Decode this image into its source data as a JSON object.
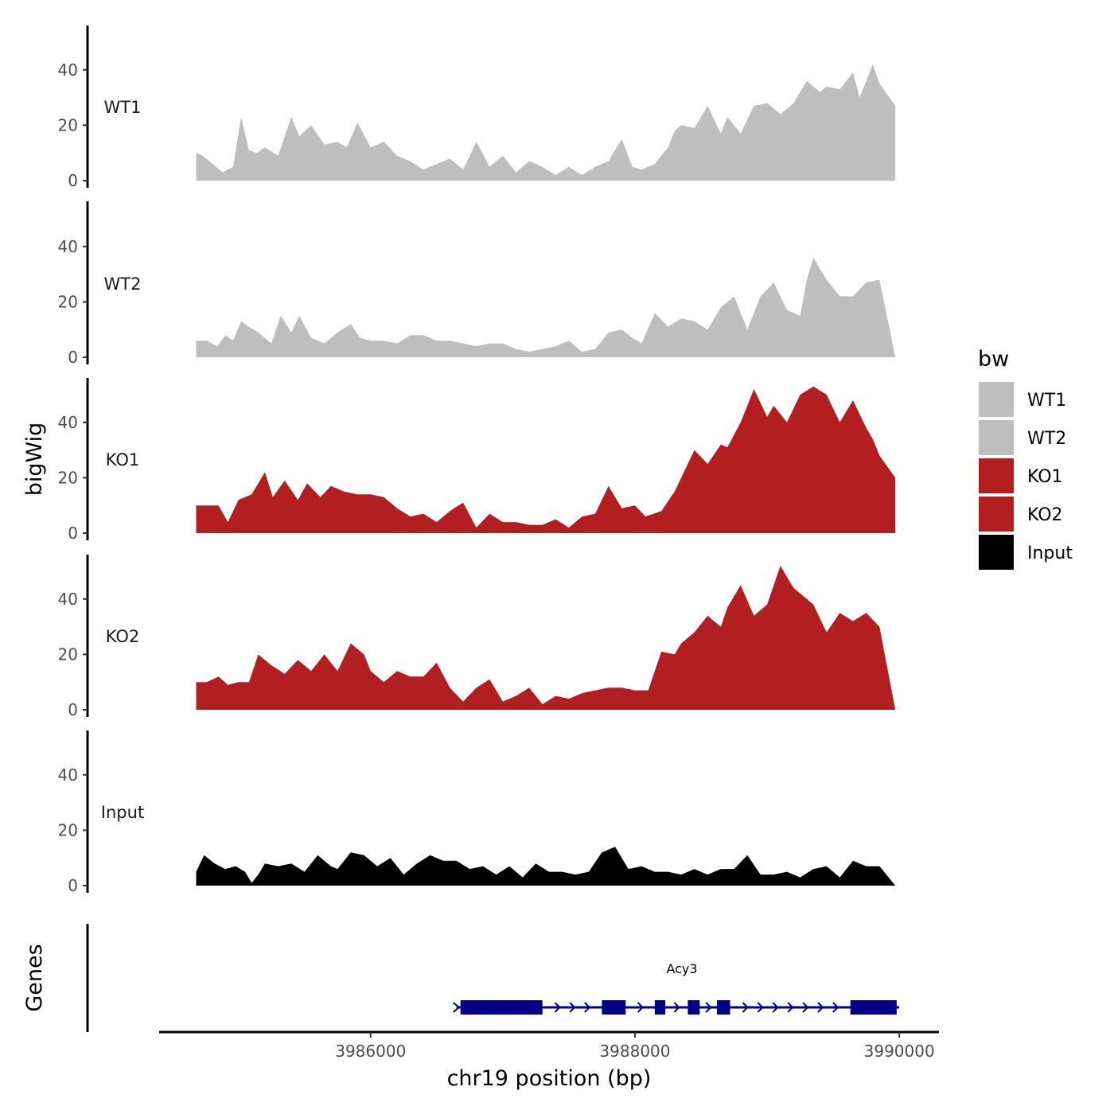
{
  "chart_data": {
    "type": "area",
    "chromosome": "chr19",
    "xlabel": "chr19 position (bp)",
    "ylabel": "bigWig",
    "genes_label": "Genes",
    "xlim": [
      3984400,
      3990300
    ],
    "x_ticks": [
      {
        "value": 3986000,
        "label": "3986000"
      },
      {
        "value": 3988000,
        "label": "3988000"
      },
      {
        "value": 3990000,
        "label": "3990000"
      }
    ],
    "ylim": [
      0,
      55
    ],
    "y_ticks": [
      {
        "value": 0,
        "label": "0"
      },
      {
        "value": 20,
        "label": "20"
      },
      {
        "value": 40,
        "label": "40"
      }
    ],
    "legend": {
      "title": "bw",
      "entries": [
        {
          "label": "WT1",
          "color": "#bebebe"
        },
        {
          "label": "WT2",
          "color": "#bebebe"
        },
        {
          "label": "KO1",
          "color": "#b31e20"
        },
        {
          "label": "KO2",
          "color": "#b31e20"
        },
        {
          "label": "Input",
          "color": "#000000"
        }
      ]
    },
    "tracks": [
      {
        "name": "WT1",
        "color": "#bebebe",
        "x": [
          3984680,
          3984730,
          3984780,
          3984880,
          3984960,
          3985020,
          3985080,
          3985140,
          3985200,
          3985300,
          3985400,
          3985460,
          3985550,
          3985650,
          3985750,
          3985820,
          3985900,
          3986000,
          3986100,
          3986200,
          3986300,
          3986400,
          3986500,
          3986600,
          3986700,
          3986800,
          3986900,
          3987000,
          3987100,
          3987200,
          3987300,
          3987400,
          3987500,
          3987600,
          3987700,
          3987800,
          3987900,
          3987980,
          3988050,
          3988150,
          3988250,
          3988300,
          3988350,
          3988450,
          3988550,
          3988650,
          3988700,
          3988800,
          3988900,
          3989000,
          3989100,
          3989200,
          3989300,
          3989400,
          3989450,
          3989550,
          3989650,
          3989700,
          3989800,
          3989850,
          3989970
        ],
        "values": [
          10,
          9,
          7,
          3,
          5,
          23,
          11,
          10,
          12,
          9,
          23,
          16,
          20,
          13,
          14,
          12,
          21,
          12,
          14,
          9,
          7,
          4,
          6,
          8,
          4,
          14,
          5,
          9,
          3,
          7,
          5,
          2,
          5,
          2,
          5,
          7,
          15,
          5,
          4,
          6,
          12,
          18,
          20,
          19,
          27,
          17,
          23,
          17,
          27,
          28,
          24,
          28,
          36,
          32,
          34,
          33,
          39,
          30,
          42,
          35,
          27
        ]
      },
      {
        "name": "WT2",
        "color": "#bebebe",
        "x": [
          3984680,
          3984760,
          3984840,
          3984900,
          3984960,
          3985020,
          3985080,
          3985150,
          3985250,
          3985320,
          3985400,
          3985460,
          3985550,
          3985650,
          3985750,
          3985850,
          3985920,
          3986000,
          3986100,
          3986200,
          3986300,
          3986400,
          3986500,
          3986600,
          3986700,
          3986800,
          3986900,
          3987000,
          3987100,
          3987200,
          3987300,
          3987400,
          3987500,
          3987600,
          3987700,
          3987800,
          3987900,
          3987980,
          3988050,
          3988150,
          3988250,
          3988350,
          3988450,
          3988550,
          3988650,
          3988750,
          3988850,
          3988950,
          3989050,
          3989150,
          3989250,
          3989300,
          3989350,
          3989450,
          3989550,
          3989650,
          3989750,
          3989850,
          3989970
        ],
        "values": [
          6,
          6,
          4,
          8,
          6,
          13,
          11,
          9,
          5,
          15,
          9,
          15,
          7,
          5,
          9,
          12,
          7,
          6,
          6,
          5,
          8,
          8,
          6,
          6,
          5,
          4,
          5,
          5,
          3,
          2,
          3,
          4,
          6,
          2,
          3,
          9,
          10,
          7,
          5,
          16,
          11,
          14,
          13,
          10,
          18,
          22,
          10,
          22,
          27,
          17,
          15,
          28,
          36,
          28,
          22,
          22,
          27,
          28,
          0
        ]
      },
      {
        "name": "KO1",
        "color": "#b31e20",
        "x": [
          3984680,
          3984760,
          3984850,
          3984920,
          3985000,
          3985100,
          3985200,
          3985260,
          3985350,
          3985450,
          3985520,
          3985620,
          3985700,
          3985800,
          3985900,
          3986000,
          3986100,
          3986200,
          3986300,
          3986400,
          3986500,
          3986600,
          3986700,
          3986800,
          3986900,
          3987000,
          3987100,
          3987200,
          3987300,
          3987400,
          3987500,
          3987600,
          3987700,
          3987800,
          3987900,
          3988000,
          3988080,
          3988200,
          3988300,
          3988400,
          3988450,
          3988550,
          3988650,
          3988700,
          3988800,
          3988900,
          3989000,
          3989050,
          3989150,
          3989250,
          3989350,
          3989450,
          3989550,
          3989650,
          3989700,
          3989750,
          3989800,
          3989850,
          3989970
        ],
        "values": [
          10,
          10,
          10,
          4,
          12,
          14,
          22,
          13,
          19,
          12,
          18,
          13,
          17,
          15,
          14,
          14,
          13,
          9,
          6,
          7,
          4,
          8,
          11,
          2,
          7,
          4,
          4,
          3,
          3,
          5,
          2,
          6,
          7,
          17,
          9,
          10,
          6,
          8,
          15,
          25,
          30,
          25,
          32,
          31,
          40,
          52,
          42,
          46,
          40,
          50,
          53,
          50,
          40,
          48,
          43,
          38,
          34,
          28,
          20
        ]
      },
      {
        "name": "KO2",
        "color": "#b31e20",
        "x": [
          3984680,
          3984760,
          3984850,
          3984920,
          3985000,
          3985080,
          3985150,
          3985250,
          3985350,
          3985450,
          3985550,
          3985650,
          3985750,
          3985850,
          3985950,
          3986000,
          3986100,
          3986200,
          3986300,
          3986400,
          3986500,
          3986600,
          3986700,
          3986800,
          3986900,
          3987000,
          3987100,
          3987200,
          3987300,
          3987400,
          3987500,
          3987600,
          3987700,
          3987800,
          3987900,
          3988000,
          3988100,
          3988200,
          3988300,
          3988350,
          3988450,
          3988550,
          3988650,
          3988700,
          3988800,
          3988900,
          3989000,
          3989100,
          3989200,
          3989300,
          3989350,
          3989450,
          3989550,
          3989650,
          3989750,
          3989850,
          3989970
        ],
        "values": [
          10,
          10,
          12,
          9,
          10,
          10,
          20,
          16,
          13,
          18,
          14,
          20,
          14,
          24,
          20,
          14,
          10,
          14,
          12,
          12,
          17,
          8,
          3,
          8,
          11,
          3,
          5,
          8,
          2,
          5,
          4,
          6,
          7,
          8,
          8,
          7,
          7,
          21,
          20,
          24,
          28,
          34,
          30,
          37,
          45,
          34,
          38,
          52,
          44,
          40,
          38,
          28,
          35,
          32,
          35,
          30,
          0
        ]
      },
      {
        "name": "Input",
        "color": "#000000",
        "x": [
          3984680,
          3984740,
          3984820,
          3984900,
          3984980,
          3985050,
          3985100,
          3985150,
          3985200,
          3985300,
          3985400,
          3985500,
          3985600,
          3985700,
          3985750,
          3985850,
          3985950,
          3986050,
          3986150,
          3986250,
          3986350,
          3986450,
          3986550,
          3986650,
          3986750,
          3986850,
          3986950,
          3987050,
          3987150,
          3987250,
          3987350,
          3987450,
          3987550,
          3987650,
          3987750,
          3987850,
          3987950,
          3988050,
          3988150,
          3988250,
          3988350,
          3988450,
          3988550,
          3988650,
          3988750,
          3988850,
          3988950,
          3989050,
          3989150,
          3989250,
          3989350,
          3989450,
          3989550,
          3989650,
          3989750,
          3989850,
          3989970
        ],
        "values": [
          5,
          11,
          8,
          6,
          7,
          5,
          1,
          4,
          8,
          7,
          8,
          5,
          11,
          7,
          6,
          12,
          11,
          7,
          10,
          4,
          8,
          11,
          9,
          9,
          6,
          7,
          4,
          7,
          3,
          8,
          5,
          5,
          4,
          5,
          12,
          14,
          6,
          7,
          5,
          5,
          4,
          6,
          4,
          6,
          6,
          11,
          4,
          4,
          5,
          3,
          6,
          7,
          3,
          9,
          7,
          7,
          0
        ]
      }
    ],
    "gene": {
      "name": "Acy3",
      "strand": "+",
      "start": 3986650,
      "end": 3990000,
      "exons": [
        [
          3986680,
          3987300
        ],
        [
          3987750,
          3987930
        ],
        [
          3988150,
          3988230
        ],
        [
          3988400,
          3988490
        ],
        [
          3988620,
          3988720
        ],
        [
          3989630,
          3989980
        ]
      ]
    }
  }
}
